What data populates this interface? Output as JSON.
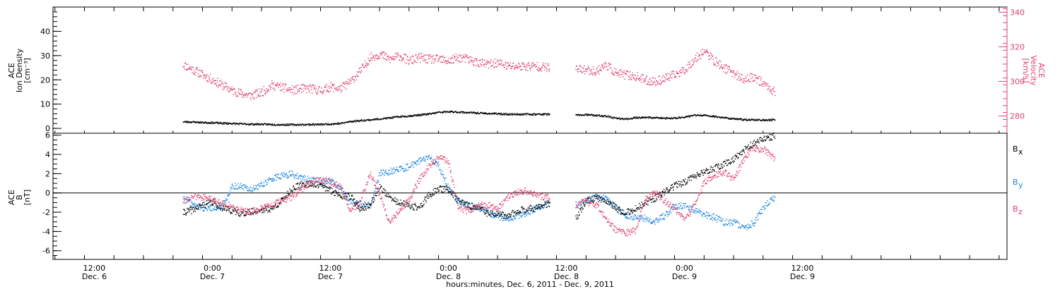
{
  "colors": {
    "axis": "#000000",
    "density": "#000000",
    "velocity": "#e0406a",
    "bx": "#000000",
    "by": "#1a86e0",
    "bz": "#e0406a"
  },
  "xaxis": {
    "title": "hours:minutes, Dec. 6, 2011 - Dec. 9, 2011",
    "range_hours": [
      -4.2,
      92.8
    ],
    "ticks": [
      {
        "t": 0,
        "time": "12:00",
        "date": "Dec. 6"
      },
      {
        "t": 12,
        "time": "0:00",
        "date": "Dec. 7"
      },
      {
        "t": 24,
        "time": "12:00",
        "date": "Dec. 7"
      },
      {
        "t": 36,
        "time": "0:00",
        "date": "Dec. 8"
      },
      {
        "t": 48,
        "time": "12:00",
        "date": "Dec. 8"
      },
      {
        "t": 60,
        "time": "0:00",
        "date": "Dec. 9"
      },
      {
        "t": 72,
        "time": "12:00",
        "date": "Dec. 9"
      }
    ]
  },
  "chart_data": [
    {
      "type": "scatter",
      "panel": "top",
      "ylabel_left": [
        "ACE",
        "Ion Density",
        "[cm⁻³]"
      ],
      "ylabel_right": [
        "ACE",
        "Velocity",
        "[km/s]"
      ],
      "ylim_left": [
        -2,
        50
      ],
      "ylim_right": [
        270,
        343
      ],
      "yticks_left": [
        0,
        10,
        20,
        30,
        40
      ],
      "yticks_right": [
        280,
        300,
        320,
        340
      ],
      "series": [
        {
          "name": "Ion Density",
          "axis": "left",
          "x": [
            9,
            10,
            11,
            12,
            13,
            14,
            15,
            16,
            17,
            18,
            19,
            20,
            21,
            22,
            23,
            24,
            25,
            26,
            27,
            28,
            29,
            30,
            31,
            32,
            33,
            34,
            35,
            36,
            37,
            38,
            39,
            40,
            41,
            42,
            43,
            44,
            45,
            46.2,
            49,
            50,
            51,
            52,
            53,
            54,
            55,
            56,
            57,
            58,
            59,
            60,
            61,
            62,
            63,
            64,
            65,
            66,
            67,
            68,
            69.2
          ],
          "y": [
            2.9,
            2.8,
            2.6,
            2.5,
            2.3,
            2.2,
            2,
            1.9,
            1.9,
            1.8,
            1.7,
            1.7,
            1.7,
            1.8,
            1.8,
            2,
            2.2,
            3,
            3.4,
            3.7,
            4.1,
            4.5,
            5,
            5.3,
            5.7,
            6.1,
            6.8,
            7,
            6.9,
            6.7,
            6.5,
            6.3,
            6.2,
            6,
            6,
            6,
            6,
            6,
            5.6,
            5.8,
            5.5,
            5.2,
            4.3,
            4,
            4.6,
            4.7,
            4.6,
            4.3,
            4.4,
            4.9,
            5.6,
            5.5,
            5.1,
            4.6,
            4.1,
            3.8,
            3.7,
            3.6,
            3.7
          ]
        },
        {
          "name": "Velocity",
          "axis": "right",
          "x": [
            9,
            10,
            11,
            12,
            13,
            14,
            15,
            16,
            17,
            18,
            19,
            20,
            21,
            22,
            23,
            24,
            25,
            26,
            27,
            28,
            29,
            30,
            31,
            32,
            33,
            34,
            35,
            36,
            37,
            38,
            39,
            40,
            41,
            42,
            43,
            44,
            45,
            46.2,
            49,
            50,
            51,
            52,
            53,
            54,
            55,
            56,
            57,
            58,
            59,
            60,
            61,
            62,
            63,
            64,
            65,
            66,
            67,
            68,
            69.2
          ],
          "y": [
            310,
            307,
            304,
            301,
            298,
            295,
            293,
            292,
            294,
            298,
            297,
            295,
            296,
            296,
            295,
            297,
            296,
            300,
            306,
            314,
            316,
            313,
            315,
            312,
            314,
            313,
            313,
            312,
            314,
            313,
            311,
            310,
            311,
            309,
            309,
            309,
            309,
            308,
            307,
            307,
            306,
            310,
            305,
            304,
            303,
            301,
            300,
            302,
            304,
            307,
            313,
            318,
            312,
            308,
            305,
            301,
            303,
            299,
            294
          ]
        }
      ]
    },
    {
      "type": "scatter",
      "panel": "bottom",
      "ylabel_left": [
        "ACE",
        "B",
        "[nT]"
      ],
      "ylim": [
        -6.9,
        6.2
      ],
      "yticks": [
        -6,
        -4,
        -2,
        0,
        2,
        4,
        6
      ],
      "legend_placement": "right",
      "zero_line": true,
      "series": [
        {
          "name": "B",
          "sub": "x",
          "x": [
            9,
            10,
            11,
            12,
            13,
            14,
            15,
            16,
            17,
            18,
            19,
            20,
            21,
            22,
            23,
            24,
            25,
            26,
            27,
            28,
            29,
            30,
            31,
            32,
            33,
            34,
            35,
            36,
            37,
            38,
            39,
            40,
            41,
            42,
            43,
            44,
            45,
            46.2,
            49,
            50,
            51,
            52,
            53,
            54,
            55,
            56,
            57,
            58,
            59,
            60,
            61,
            62,
            63,
            64,
            65,
            66,
            67,
            68,
            69.2
          ],
          "y": [
            -2,
            -1.7,
            -1.2,
            -0.9,
            -1.5,
            -1.8,
            -2.1,
            -1.9,
            -1.7,
            -1.6,
            -0.8,
            0.4,
            0.9,
            1,
            0.8,
            0.3,
            -0.2,
            -0.3,
            -1.6,
            -1.2,
            0.7,
            -0.5,
            -1,
            -1.3,
            -1.5,
            -0.2,
            0.5,
            0.4,
            -0.8,
            -1.3,
            -1.5,
            -2.1,
            -2.2,
            -2.4,
            -1.8,
            -1.6,
            -1.5,
            -1,
            -2.5,
            -0.8,
            -0.5,
            -0.7,
            -1.5,
            -2,
            -1.6,
            -1,
            -0.5,
            0.2,
            0.8,
            1.2,
            1.8,
            2.2,
            2.6,
            3,
            3.6,
            4.5,
            5.2,
            5.6,
            6
          ]
        },
        {
          "name": "B",
          "sub": "y",
          "x": [
            9,
            10,
            11,
            12,
            13,
            14,
            15,
            16,
            17,
            18,
            19,
            20,
            21,
            22,
            23,
            24,
            25,
            26,
            27,
            28,
            29,
            30,
            31,
            32,
            33,
            34,
            35,
            36,
            37,
            38,
            39,
            40,
            41,
            42,
            43,
            44,
            45,
            46.2,
            49,
            50,
            51,
            52,
            53,
            54,
            55,
            56,
            57,
            58,
            59,
            60,
            61,
            62,
            63,
            64,
            65,
            66,
            67,
            68,
            69.2
          ],
          "y": [
            -0.4,
            -1.2,
            -1.5,
            -1.5,
            -1.4,
            0.8,
            0.7,
            0.4,
            0.9,
            1.5,
            1.8,
            2,
            1.6,
            1.4,
            1.2,
            1.4,
            0.5,
            -0.9,
            -1.1,
            -1.3,
            2.1,
            2.3,
            2.5,
            2.8,
            3.4,
            3.6,
            2.9,
            0.5,
            -0.8,
            -1.2,
            -1.4,
            -2,
            -2.4,
            -2.6,
            -2.3,
            -2,
            -1.5,
            -1.2,
            -1.3,
            -0.7,
            -0.4,
            -0.6,
            -1.5,
            -2.3,
            -2.5,
            -2.6,
            -2.9,
            -2.3,
            -1.3,
            -1.3,
            -1.8,
            -2.2,
            -2.5,
            -3,
            -3,
            -3.6,
            -3.1,
            -1.5,
            -0.3
          ]
        },
        {
          "name": "B",
          "sub": "z",
          "x": [
            9,
            10,
            11,
            12,
            13,
            14,
            15,
            16,
            17,
            18,
            19,
            20,
            21,
            22,
            23,
            24,
            25,
            26,
            27,
            28,
            29,
            30,
            31,
            32,
            33,
            34,
            35,
            36,
            37,
            38,
            39,
            40,
            41,
            42,
            43,
            44,
            45,
            46.2,
            49,
            50,
            51,
            52,
            53,
            54,
            55,
            56,
            57,
            58,
            59,
            60,
            61,
            62,
            63,
            64,
            65,
            66,
            67,
            68,
            69.2
          ],
          "y": [
            -0.8,
            -0.3,
            -0.4,
            -0.7,
            -1,
            -1.4,
            -1.8,
            -1.9,
            -1.6,
            -1.2,
            -0.8,
            -0.4,
            0.4,
            1.3,
            1.4,
            1.2,
            0.7,
            -1.8,
            -1,
            2.2,
            -0.2,
            -3,
            -1.8,
            -0.6,
            1.4,
            2.8,
            3.8,
            3.2,
            -1.6,
            -1.8,
            -1.3,
            -1.2,
            -1.5,
            -0.5,
            0.2,
            0.2,
            -0.2,
            -0.5,
            -1.1,
            -0.8,
            -1.2,
            -2.6,
            -3.8,
            -4.1,
            -3.8,
            -0.6,
            0.1,
            -0.8,
            -1.6,
            -2.9,
            -1.2,
            1.2,
            1.8,
            2.2,
            1.5,
            3.5,
            4.7,
            4.6,
            3.5
          ]
        }
      ]
    }
  ]
}
